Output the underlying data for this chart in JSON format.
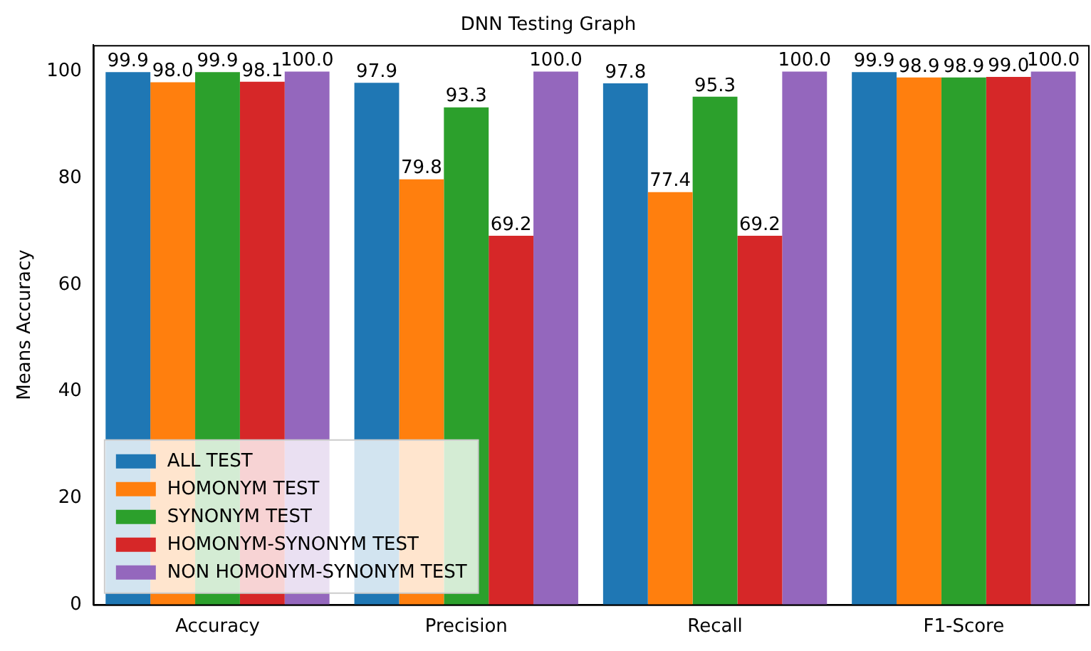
{
  "chart_data": {
    "type": "bar",
    "title": "DNN Testing Graph",
    "ylabel": "Means Accuracy",
    "categories": [
      "Accuracy",
      "Precision",
      "Recall",
      "F1-Score"
    ],
    "ylim": [
      0,
      105
    ],
    "yticks": [
      0,
      20,
      40,
      60,
      80,
      100
    ],
    "grid": false,
    "legend": "bottom left",
    "data_labels": true,
    "series": [
      {
        "name": "ALL TEST",
        "color": "#1f77b4",
        "values": [
          99.9,
          97.9,
          97.8,
          99.9
        ],
        "value_labels": [
          "99.9",
          "97.9",
          "97.8",
          "99.9"
        ]
      },
      {
        "name": "HOMONYM TEST",
        "color": "#ff7f0e",
        "values": [
          98.0,
          79.8,
          77.4,
          98.9
        ],
        "value_labels": [
          "98.0",
          "79.8",
          "77.4",
          "98.9"
        ]
      },
      {
        "name": "SYNONYM TEST",
        "color": "#2ca02c",
        "values": [
          99.9,
          93.3,
          95.3,
          98.9
        ],
        "value_labels": [
          "99.9",
          "93.3",
          "95.3",
          "98.9"
        ]
      },
      {
        "name": "HOMONYM-SYNONYM TEST",
        "color": "#d62728",
        "values": [
          98.1,
          69.2,
          69.2,
          99.0
        ],
        "value_labels": [
          "98.1",
          "69.2",
          "69.2",
          "99.0"
        ]
      },
      {
        "name": "NON HOMONYM-SYNONYM TEST",
        "color": "#9467bd",
        "values": [
          100.0,
          100.0,
          100.0,
          100.0
        ],
        "value_labels": [
          "100.0",
          "100.0",
          "100.0",
          "100.0"
        ]
      }
    ]
  }
}
